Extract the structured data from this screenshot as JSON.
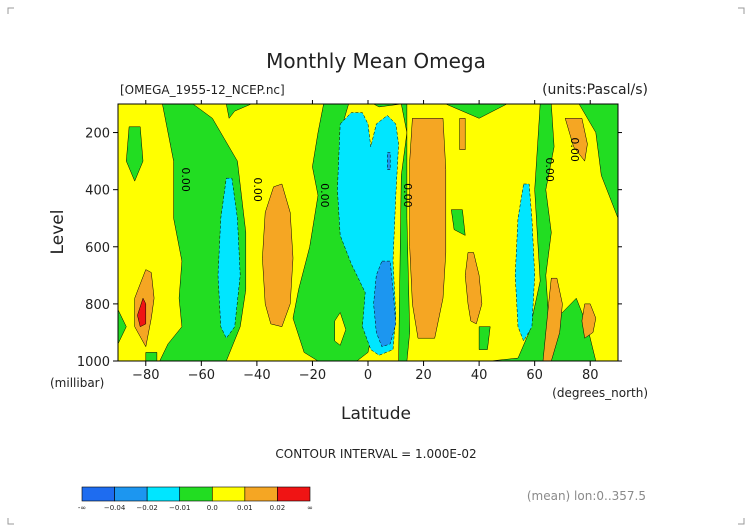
{
  "header": {
    "title": "Monthly Mean Omega",
    "file": "[OMEGA_1955-12_NCEP.nc]",
    "units": "(units:Pascal/s)"
  },
  "footer": {
    "contour_interval": "CONTOUR INTERVAL = 1.000E-02",
    "mean_note": "(mean) lon:0..357.5"
  },
  "colors": {
    "deep_blue": "#1e6cf0",
    "blue": "#1c96f0",
    "cyan": "#00e6ff",
    "green": "#22dd22",
    "yellow": "#ffff00",
    "orange": "#f5a623",
    "red": "#f01414"
  },
  "chart_data": {
    "type": "contour",
    "title": "Monthly Mean Omega",
    "xlabel": "Latitude",
    "x_unit": "(degrees_north)",
    "ylabel": "Level",
    "y_unit": "(millibar)",
    "xlim": [
      -90,
      90
    ],
    "ylim": [
      1000,
      100
    ],
    "x_ticks": [
      -80,
      -60,
      -40,
      -20,
      0,
      20,
      40,
      60,
      80
    ],
    "x_tick_labels": [
      "−80",
      "−60",
      "−40",
      "−20",
      "0",
      "20",
      "40",
      "60",
      "80"
    ],
    "y_ticks": [
      200,
      400,
      600,
      800,
      1000
    ],
    "y_tick_labels": [
      "200",
      "400",
      "600",
      "800",
      "1000"
    ],
    "contour_labels": [
      {
        "text": "0.00",
        "lat": -67,
        "lev": 365
      },
      {
        "text": "0.00",
        "lat": -41,
        "lev": 400
      },
      {
        "text": "0.00",
        "lat": -17,
        "lev": 420
      },
      {
        "text": "0.00",
        "lat": 13,
        "lev": 420
      },
      {
        "text": "0.00",
        "lat": 64,
        "lev": 330
      },
      {
        "text": "0.00",
        "lat": 73,
        "lev": 260
      }
    ],
    "regions": [
      {
        "level": "green",
        "points": [
          [
            -90,
            100
          ],
          [
            90,
            100
          ],
          [
            90,
            1000
          ],
          [
            -90,
            1000
          ]
        ]
      },
      {
        "level": "yellow",
        "points": [
          [
            -90,
            100
          ],
          [
            -74,
            100
          ],
          [
            -70,
            300
          ],
          [
            -70,
            500
          ],
          [
            -67,
            650
          ],
          [
            -68,
            780
          ],
          [
            -67,
            880
          ],
          [
            -72,
            940
          ],
          [
            -75,
            1000
          ],
          [
            -90,
            1000
          ],
          [
            -90,
            940
          ],
          [
            -87,
            880
          ],
          [
            -90,
            820
          ]
        ]
      },
      {
        "level": "green",
        "points": [
          [
            -86,
            180
          ],
          [
            -82,
            180
          ],
          [
            -81,
            300
          ],
          [
            -84,
            370
          ],
          [
            -87,
            300
          ]
        ]
      },
      {
        "level": "green",
        "points": [
          [
            -80,
            970
          ],
          [
            -76,
            970
          ],
          [
            -76,
            1000
          ],
          [
            -80,
            1000
          ]
        ]
      },
      {
        "level": "yellow",
        "points": [
          [
            -63,
            100
          ],
          [
            -51,
            100
          ],
          [
            -50,
            150
          ],
          [
            -48,
            125
          ],
          [
            -42,
            100
          ],
          [
            -16,
            100
          ],
          [
            -18,
            200
          ],
          [
            -20,
            320
          ],
          [
            -18,
            420
          ],
          [
            -21,
            600
          ],
          [
            -25,
            750
          ],
          [
            -27,
            850
          ],
          [
            -23,
            970
          ],
          [
            -18,
            1000
          ],
          [
            -51,
            1000
          ],
          [
            -46,
            880
          ],
          [
            -44,
            750
          ],
          [
            -44,
            550
          ],
          [
            -47,
            300
          ],
          [
            -56,
            150
          ]
        ]
      },
      {
        "level": "yellow",
        "points": [
          [
            -12,
            860
          ],
          [
            -10,
            830
          ],
          [
            -8,
            890
          ],
          [
            -10,
            945
          ],
          [
            -12,
            930
          ]
        ]
      },
      {
        "level": "yellow",
        "points": [
          [
            -7,
            100
          ],
          [
            2,
            100
          ],
          [
            4,
            110
          ],
          [
            12,
            100
          ],
          [
            14,
            200
          ],
          [
            12,
            350
          ],
          [
            11,
            1000
          ],
          [
            -4,
            1000
          ],
          [
            0,
            970
          ],
          [
            1,
            920
          ],
          [
            -2,
            880
          ],
          [
            0,
            760
          ],
          [
            5,
            720
          ],
          [
            2,
            550
          ],
          [
            -3,
            580
          ],
          [
            -8,
            500
          ],
          [
            -9,
            350
          ],
          [
            -10,
            200
          ]
        ]
      },
      {
        "level": "yellow",
        "points": [
          [
            14,
            100
          ],
          [
            28,
            100
          ],
          [
            40,
            150
          ],
          [
            50,
            100
          ],
          [
            62,
            100
          ],
          [
            60,
            400
          ],
          [
            61,
            560
          ],
          [
            62,
            720
          ],
          [
            58,
            900
          ],
          [
            54,
            990
          ],
          [
            44,
            1000
          ],
          [
            14,
            1000
          ],
          [
            15,
            900
          ],
          [
            14,
            500
          ]
        ]
      },
      {
        "level": "green",
        "points": [
          [
            30,
            470
          ],
          [
            34,
            470
          ],
          [
            35,
            560
          ],
          [
            31,
            540
          ]
        ]
      },
      {
        "level": "green",
        "points": [
          [
            40,
            880
          ],
          [
            44,
            880
          ],
          [
            43,
            960
          ],
          [
            40,
            960
          ]
        ]
      },
      {
        "level": "yellow",
        "points": [
          [
            66,
            100
          ],
          [
            76,
            100
          ],
          [
            82,
            200
          ],
          [
            84,
            350
          ],
          [
            90,
            500
          ],
          [
            90,
            1000
          ],
          [
            82,
            1000
          ],
          [
            79,
            880
          ],
          [
            77,
            830
          ],
          [
            75,
            780
          ],
          [
            70,
            830
          ],
          [
            65,
            850
          ],
          [
            64,
            700
          ],
          [
            66,
            550
          ],
          [
            64,
            400
          ],
          [
            67,
            250
          ]
        ]
      },
      {
        "level": "cyan",
        "points": [
          [
            -51,
            360
          ],
          [
            -49,
            360
          ],
          [
            -47,
            500
          ],
          [
            -46,
            700
          ],
          [
            -48,
            880
          ],
          [
            -51,
            920
          ],
          [
            -53,
            880
          ],
          [
            -54,
            700
          ],
          [
            -53,
            500
          ]
        ]
      },
      {
        "level": "cyan",
        "points": [
          [
            -10,
            170
          ],
          [
            -6,
            130
          ],
          [
            -2,
            130
          ],
          [
            0,
            170
          ],
          [
            1,
            250
          ],
          [
            3,
            170
          ],
          [
            7,
            140
          ],
          [
            10,
            170
          ],
          [
            11,
            240
          ],
          [
            10,
            420
          ],
          [
            9,
            650
          ],
          [
            10,
            840
          ],
          [
            9,
            960
          ],
          [
            4,
            980
          ],
          [
            1,
            960
          ],
          [
            -2,
            880
          ],
          [
            -1,
            760
          ],
          [
            -6,
            660
          ],
          [
            -10,
            560
          ],
          [
            -11,
            400
          ]
        ]
      },
      {
        "level": "blue",
        "points": [
          [
            5,
            650
          ],
          [
            8,
            650
          ],
          [
            9,
            750
          ],
          [
            10,
            870
          ],
          [
            8,
            940
          ],
          [
            5,
            950
          ],
          [
            3,
            900
          ],
          [
            2,
            800
          ],
          [
            3,
            700
          ]
        ]
      },
      {
        "level": "blue",
        "points": [
          [
            7,
            270
          ],
          [
            8,
            270
          ],
          [
            8,
            330
          ],
          [
            7,
            330
          ]
        ]
      },
      {
        "level": "cyan",
        "points": [
          [
            56,
            380
          ],
          [
            58,
            380
          ],
          [
            59,
            500
          ],
          [
            60,
            700
          ],
          [
            59,
            880
          ],
          [
            56,
            930
          ],
          [
            54,
            880
          ],
          [
            53,
            700
          ],
          [
            54,
            500
          ]
        ]
      },
      {
        "level": "orange",
        "points": [
          [
            -34,
            390
          ],
          [
            -31,
            380
          ],
          [
            -28,
            480
          ],
          [
            -27,
            640
          ],
          [
            -28,
            800
          ],
          [
            -31,
            880
          ],
          [
            -35,
            870
          ],
          [
            -37,
            800
          ],
          [
            -38,
            640
          ],
          [
            -37,
            480
          ]
        ]
      },
      {
        "level": "orange",
        "points": [
          [
            16,
            150
          ],
          [
            27,
            150
          ],
          [
            28,
            330
          ],
          [
            28,
            620
          ],
          [
            27,
            780
          ],
          [
            24,
            920
          ],
          [
            18,
            920
          ],
          [
            16,
            800
          ],
          [
            15,
            600
          ],
          [
            15,
            300
          ]
        ]
      },
      {
        "level": "orange",
        "points": [
          [
            36,
            620
          ],
          [
            38,
            620
          ],
          [
            40,
            700
          ],
          [
            41,
            800
          ],
          [
            39,
            870
          ],
          [
            37,
            860
          ],
          [
            36,
            800
          ],
          [
            35,
            700
          ]
        ]
      },
      {
        "level": "orange",
        "points": [
          [
            33,
            150
          ],
          [
            35,
            150
          ],
          [
            35,
            260
          ],
          [
            33,
            260
          ]
        ]
      },
      {
        "level": "orange",
        "points": [
          [
            71,
            150
          ],
          [
            77,
            150
          ],
          [
            79,
            240
          ],
          [
            78,
            300
          ],
          [
            74,
            250
          ]
        ]
      },
      {
        "level": "orange",
        "points": [
          [
            -80,
            680
          ],
          [
            -78,
            690
          ],
          [
            -77,
            780
          ],
          [
            -78,
            850
          ],
          [
            -80,
            950
          ],
          [
            -84,
            880
          ],
          [
            -84,
            780
          ],
          [
            -82,
            730
          ]
        ]
      },
      {
        "level": "orange",
        "points": [
          [
            66,
            710
          ],
          [
            68,
            710
          ],
          [
            70,
            800
          ],
          [
            69,
            900
          ],
          [
            66,
            1000
          ],
          [
            63,
            1000
          ],
          [
            64,
            900
          ],
          [
            65,
            800
          ]
        ]
      },
      {
        "level": "orange",
        "points": [
          [
            78,
            800
          ],
          [
            80,
            800
          ],
          [
            82,
            850
          ],
          [
            81,
            900
          ],
          [
            78,
            920
          ],
          [
            77,
            860
          ]
        ]
      },
      {
        "level": "red",
        "points": [
          [
            -81,
            780
          ],
          [
            -80,
            800
          ],
          [
            -80,
            870
          ],
          [
            -82,
            880
          ],
          [
            -83,
            840
          ]
        ]
      }
    ],
    "colorbar": {
      "labels": [
        "-∞",
        "−0.04",
        "−0.02",
        "−0.01",
        "0.0",
        "0.01",
        "0.02",
        "∞"
      ],
      "colors": [
        "#1e6cf0",
        "#1c96f0",
        "#00e6ff",
        "#22dd22",
        "#ffff00",
        "#f5a623",
        "#f01414"
      ]
    },
    "grid": false
  }
}
